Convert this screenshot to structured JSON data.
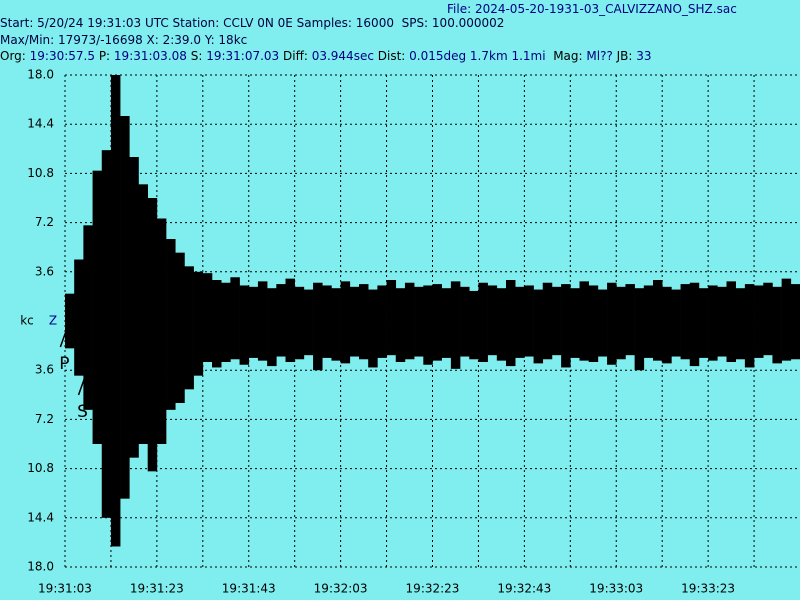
{
  "header": [
    [
      {
        "text": "File: 2024-05-20-1931-03_CALVIZZANO_SHZ.sac",
        "color": "#000080"
      }
    ],
    [
      {
        "text": "Start: 5/20/24 19:31:03 UTC Station: CCLV 0N 0E Samples: 16000  SPS: 100.000002",
        "color": "#000040"
      }
    ],
    [
      {
        "text": "Max/Min: 17973/-16698 X: 2:39.0 Y: 18kc",
        "color": "#000040"
      }
    ],
    [
      {
        "text": "Org: ",
        "color": "#000000"
      },
      {
        "text": "19:30:57.5",
        "color": "#000080"
      },
      {
        "text": " P: ",
        "color": "#000000"
      },
      {
        "text": "19:31:03.08",
        "color": "#000080"
      },
      {
        "text": " S: ",
        "color": "#000000"
      },
      {
        "text": "19:31:07.03",
        "color": "#000080"
      },
      {
        "text": " Diff: ",
        "color": "#000000"
      },
      {
        "text": "03.944sec",
        "color": "#000080"
      },
      {
        "text": " Dist: ",
        "color": "#000000"
      },
      {
        "text": "0.015deg 1.7km 1.1mi",
        "color": "#000080"
      },
      {
        "text": "  Mag: ",
        "color": "#000000"
      },
      {
        "text": "Ml??",
        "color": "#000080"
      },
      {
        "text": " JB: ",
        "color": "#000000"
      },
      {
        "text": "33",
        "color": "#000080"
      }
    ]
  ],
  "chart_data": {
    "type": "seismogram",
    "y_unit": "kc",
    "channel": "Z",
    "color": "#000000",
    "background": "#80eeee",
    "grid": true,
    "xlim": [
      70263,
      70423
    ],
    "ylim": [
      -18,
      18
    ],
    "xticks": [
      {
        "value": 70263,
        "label": "19:31:03"
      },
      {
        "value": 70283,
        "label": "19:31:23"
      },
      {
        "value": 70303,
        "label": "19:31:43"
      },
      {
        "value": 70323,
        "label": "19:32:03"
      },
      {
        "value": 70343,
        "label": "19:32:23"
      },
      {
        "value": 70363,
        "label": "19:32:43"
      },
      {
        "value": 70383,
        "label": "19:33:03"
      },
      {
        "value": 70403,
        "label": "19:33:23"
      }
    ],
    "xgrid": [
      70273,
      70293,
      70313,
      70333,
      70353,
      70373,
      70393,
      70413
    ],
    "yticks": [
      {
        "value": 18,
        "label": "18.0"
      },
      14.4,
      10.8,
      7.2,
      3.6,
      {
        "value": -3.6,
        "label": "3.6"
      },
      {
        "value": -7.2,
        "label": "7.2"
      },
      {
        "value": -10.8,
        "label": "10.8"
      },
      {
        "value": -14.4,
        "label": "14.4"
      },
      {
        "value": -18,
        "label": "18.0"
      }
    ],
    "picks": [
      {
        "label": "P",
        "x": 70263.08
      },
      {
        "label": "S",
        "x": 70267.03
      }
    ],
    "x": [
      70263,
      70265,
      70267,
      70269,
      70271,
      70273,
      70275,
      70277,
      70279,
      70281,
      70283,
      70285,
      70287,
      70289,
      70291,
      70293,
      70295,
      70297,
      70299,
      70301,
      70303,
      70305,
      70307,
      70309,
      70311,
      70313,
      70315,
      70317,
      70319,
      70321,
      70323,
      70325,
      70327,
      70329,
      70331,
      70333,
      70335,
      70337,
      70339,
      70341,
      70343,
      70345,
      70347,
      70349,
      70351,
      70353,
      70355,
      70357,
      70359,
      70361,
      70363,
      70365,
      70367,
      70369,
      70371,
      70373,
      70375,
      70377,
      70379,
      70381,
      70383,
      70385,
      70387,
      70389,
      70391,
      70393,
      70395,
      70397,
      70399,
      70401,
      70403,
      70405,
      70407,
      70409,
      70411,
      70413,
      70415,
      70417,
      70419,
      70421
    ],
    "upper": [
      2,
      4.5,
      7,
      11,
      12.5,
      18,
      15,
      12,
      10,
      9,
      7.5,
      6,
      5,
      4,
      3.6,
      3.5,
      3,
      2.8,
      3.2,
      2.6,
      2.5,
      2.9,
      2.4,
      2.7,
      3.1,
      2.5,
      2.3,
      2.8,
      2.6,
      2.4,
      2.9,
      2.5,
      2.7,
      2.3,
      2.6,
      3,
      2.4,
      2.8,
      2.5,
      2.6,
      2.7,
      2.4,
      2.9,
      2.5,
      2.2,
      2.8,
      2.6,
      2.4,
      3,
      2.5,
      2.6,
      2.3,
      2.8,
      2.5,
      2.7,
      2.4,
      2.9,
      2.6,
      2.3,
      2.8,
      2.5,
      2.7,
      2.4,
      2.6,
      3,
      2.5,
      2.3,
      2.7,
      2.8,
      2.4,
      2.6,
      2.5,
      2.9,
      2.4,
      2.7,
      2.6,
      2.8,
      2.5,
      3.1,
      2.7
    ],
    "lower": [
      -2,
      -4,
      -6.5,
      -9,
      -14.4,
      -16.5,
      -13,
      -10,
      -9,
      -11,
      -9,
      -6.5,
      -6,
      -5,
      -4,
      -3,
      -3.4,
      -3,
      -2.8,
      -3.2,
      -2.7,
      -2.9,
      -3.3,
      -2.6,
      -3,
      -2.8,
      -2.5,
      -3.6,
      -2.7,
      -2.9,
      -3.1,
      -2.6,
      -2.8,
      -3.4,
      -2.7,
      -2.5,
      -3,
      -2.8,
      -2.6,
      -3.2,
      -2.9,
      -2.7,
      -3.5,
      -2.6,
      -2.8,
      -3,
      -2.5,
      -2.9,
      -3.3,
      -2.7,
      -2.6,
      -3.1,
      -2.8,
      -2.5,
      -3.4,
      -2.7,
      -2.9,
      -3,
      -2.6,
      -3.2,
      -2.8,
      -2.5,
      -3.6,
      -2.7,
      -2.9,
      -3.1,
      -2.6,
      -2.8,
      -3.3,
      -2.7,
      -2.9,
      -2.6,
      -3,
      -2.8,
      -3.4,
      -2.7,
      -2.5,
      -3.1,
      -2.9,
      -2.8
    ]
  }
}
